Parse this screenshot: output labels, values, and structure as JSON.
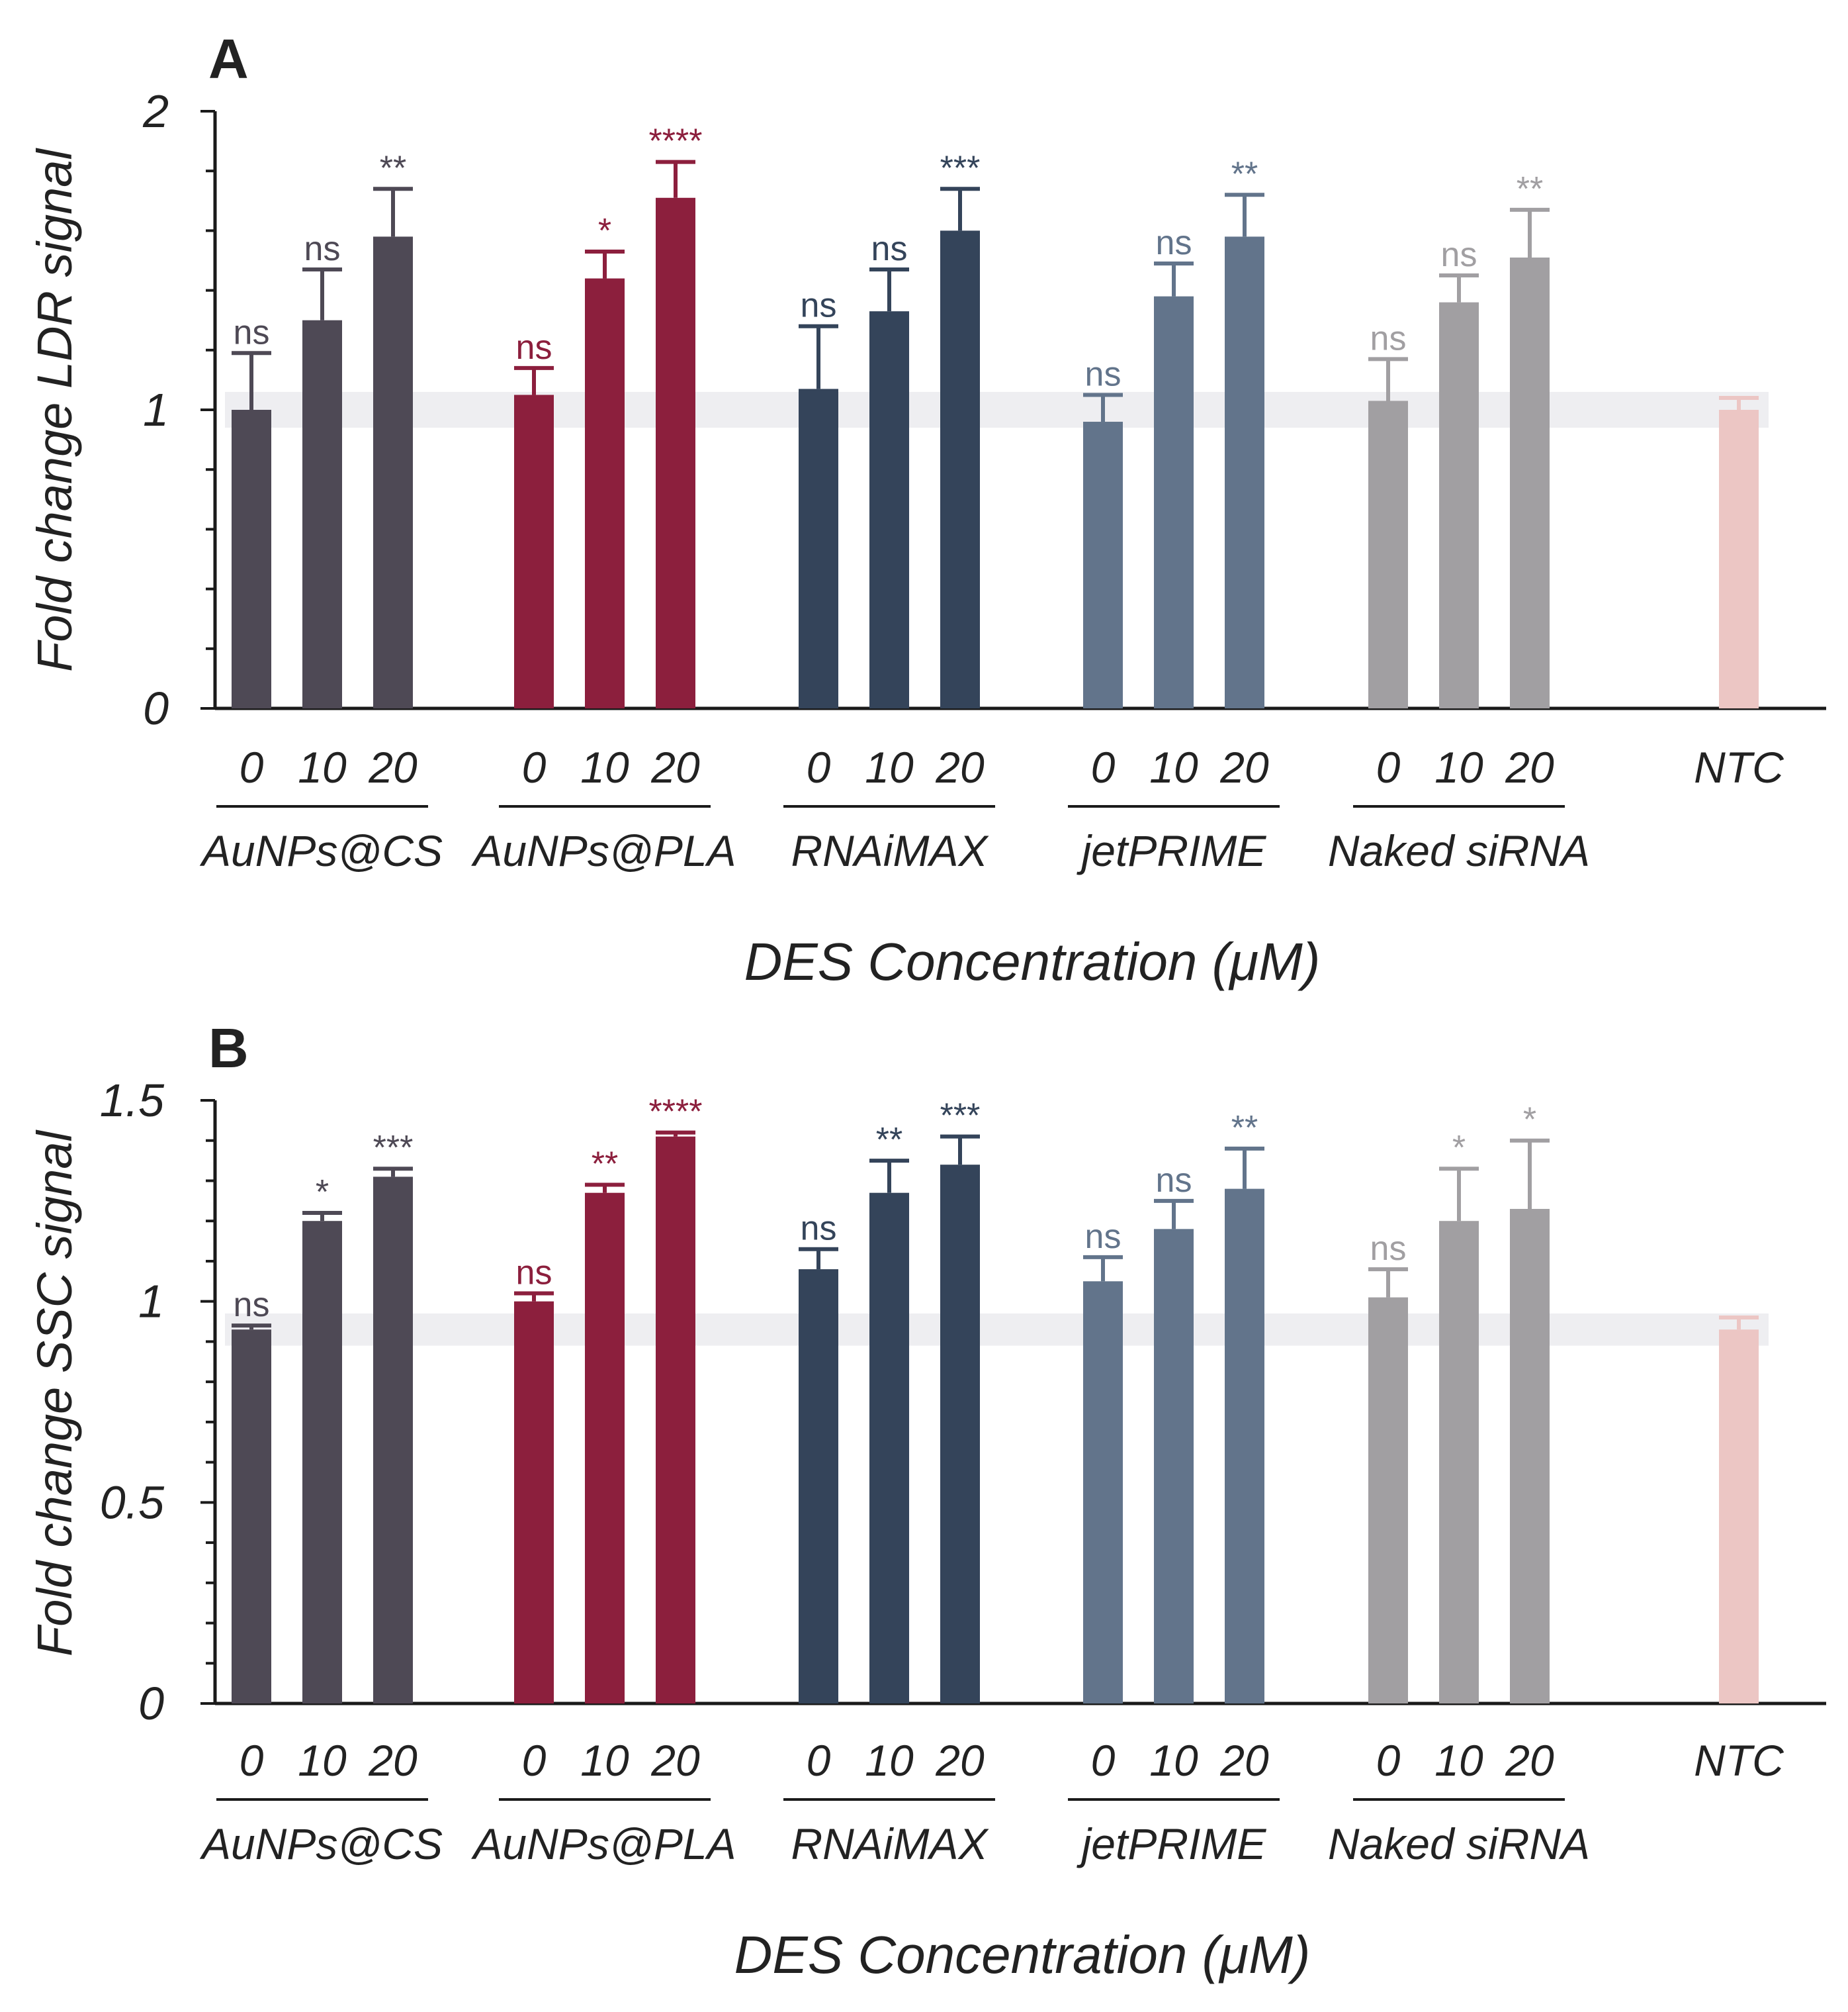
{
  "chart_data": [
    {
      "panel": "A",
      "type": "bar",
      "ylabel": "Fold change LDR signal",
      "xlabel": "DES Concentration (μM)",
      "ylim": [
        0,
        2
      ],
      "yticks": [
        0,
        1,
        2
      ],
      "ytick_labels": [
        "0",
        "1",
        "2"
      ],
      "minor_tick_step": 0.2,
      "reference_band": [
        0.94,
        1.06
      ],
      "groups": [
        {
          "name": "AuNPs@CS",
          "color": "#4e4955",
          "concentrations": [
            "0",
            "10",
            "20"
          ],
          "values": [
            1.0,
            1.3,
            1.58
          ],
          "errors": [
            0.19,
            0.17,
            0.16
          ],
          "significance": [
            "ns",
            "ns",
            "**"
          ]
        },
        {
          "name": "AuNPs@PLA",
          "color": "#8c1f3d",
          "concentrations": [
            "0",
            "10",
            "20"
          ],
          "values": [
            1.05,
            1.44,
            1.71
          ],
          "errors": [
            0.09,
            0.09,
            0.12
          ],
          "significance": [
            "ns",
            "*",
            "****"
          ]
        },
        {
          "name": "RNAiMAX",
          "color": "#34445a",
          "concentrations": [
            "0",
            "10",
            "20"
          ],
          "values": [
            1.07,
            1.33,
            1.6
          ],
          "errors": [
            0.21,
            0.14,
            0.14
          ],
          "significance": [
            "ns",
            "ns",
            "***"
          ]
        },
        {
          "name": "jetPRIME",
          "color": "#62748b",
          "concentrations": [
            "0",
            "10",
            "20"
          ],
          "values": [
            0.96,
            1.38,
            1.58
          ],
          "errors": [
            0.09,
            0.11,
            0.14
          ],
          "significance": [
            "ns",
            "ns",
            "**"
          ]
        },
        {
          "name": "Naked siRNA",
          "color": "#a19fa2",
          "concentrations": [
            "0",
            "10",
            "20"
          ],
          "values": [
            1.03,
            1.36,
            1.51
          ],
          "errors": [
            0.14,
            0.09,
            0.16
          ],
          "significance": [
            "ns",
            "ns",
            "**"
          ]
        },
        {
          "name": "",
          "color": "#ecc6c4",
          "concentrations": [
            "NTC"
          ],
          "values": [
            1.0
          ],
          "errors": [
            0.04
          ],
          "significance": [
            ""
          ]
        }
      ]
    },
    {
      "panel": "B",
      "type": "bar",
      "ylabel": "Fold change SSC signal",
      "xlabel": "DES Concentration (μM)",
      "ylim": [
        0,
        1.5
      ],
      "yticks": [
        0,
        0.5,
        1,
        1.5
      ],
      "ytick_labels": [
        "0",
        "0.5",
        "1",
        "1.5"
      ],
      "minor_tick_step": 0.1,
      "reference_band": [
        0.89,
        0.97
      ],
      "groups": [
        {
          "name": "AuNPs@CS",
          "color": "#4e4955",
          "concentrations": [
            "0",
            "10",
            "20"
          ],
          "values": [
            0.93,
            1.2,
            1.31
          ],
          "errors": [
            0.01,
            0.02,
            0.02
          ],
          "significance": [
            "ns",
            "*",
            "***"
          ]
        },
        {
          "name": "AuNPs@PLA",
          "color": "#8c1f3d",
          "concentrations": [
            "0",
            "10",
            "20"
          ],
          "values": [
            1.0,
            1.27,
            1.41
          ],
          "errors": [
            0.02,
            0.02,
            0.01
          ],
          "significance": [
            "ns",
            "**",
            "****"
          ]
        },
        {
          "name": "RNAiMAX",
          "color": "#34445a",
          "concentrations": [
            "0",
            "10",
            "20"
          ],
          "values": [
            1.08,
            1.27,
            1.34
          ],
          "errors": [
            0.05,
            0.08,
            0.07
          ],
          "significance": [
            "ns",
            "**",
            "***"
          ]
        },
        {
          "name": "jetPRIME",
          "color": "#62748b",
          "concentrations": [
            "0",
            "10",
            "20"
          ],
          "values": [
            1.05,
            1.18,
            1.28
          ],
          "errors": [
            0.06,
            0.07,
            0.1
          ],
          "significance": [
            "ns",
            "ns",
            "**"
          ]
        },
        {
          "name": "Naked siRNA",
          "color": "#a19fa2",
          "concentrations": [
            "0",
            "10",
            "20"
          ],
          "values": [
            1.01,
            1.2,
            1.23
          ],
          "errors": [
            0.07,
            0.13,
            0.17
          ],
          "significance": [
            "ns",
            "*",
            "*"
          ]
        },
        {
          "name": "",
          "color": "#ecc6c4",
          "concentrations": [
            "NTC"
          ],
          "values": [
            0.93
          ],
          "errors": [
            0.03
          ],
          "significance": [
            ""
          ]
        }
      ]
    }
  ]
}
